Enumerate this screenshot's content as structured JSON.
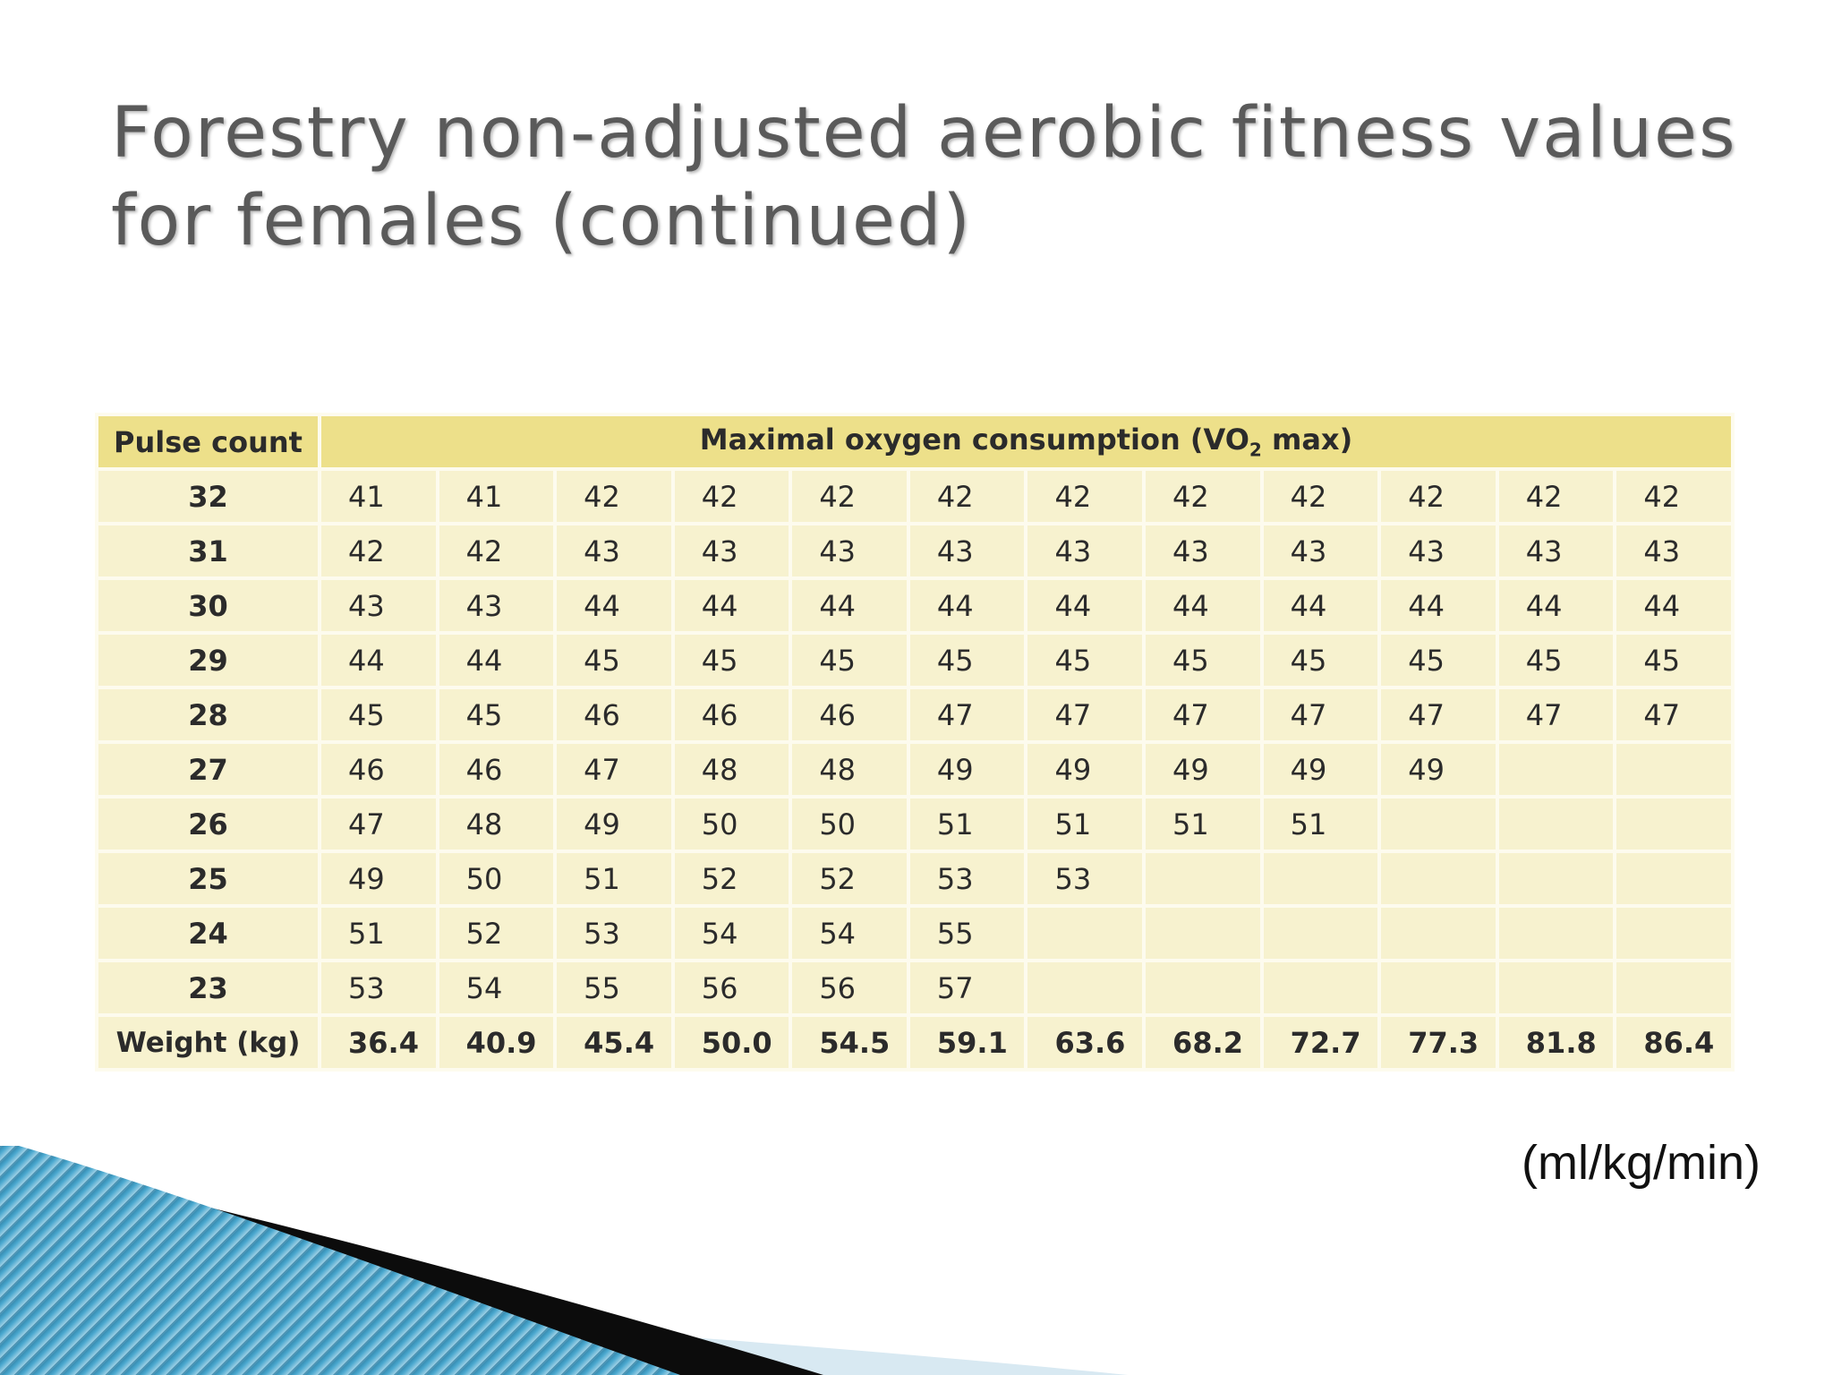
{
  "slide": {
    "title_line1": "Forestry non-adjusted aerobic fitness values",
    "title_line2": "for females (continued)",
    "unit": "(ml/kg/min)"
  },
  "table": {
    "header_row_label": "Pulse count",
    "header_group_prefix": "Maximal oxygen consumption (VO",
    "header_group_sub": "2",
    "header_group_suffix": " max)",
    "rows": [
      {
        "pulse": "32",
        "values": [
          "41",
          "41",
          "42",
          "42",
          "42",
          "42",
          "42",
          "42",
          "42",
          "42",
          "42",
          "42"
        ]
      },
      {
        "pulse": "31",
        "values": [
          "42",
          "42",
          "43",
          "43",
          "43",
          "43",
          "43",
          "43",
          "43",
          "43",
          "43",
          "43"
        ]
      },
      {
        "pulse": "30",
        "values": [
          "43",
          "43",
          "44",
          "44",
          "44",
          "44",
          "44",
          "44",
          "44",
          "44",
          "44",
          "44"
        ]
      },
      {
        "pulse": "29",
        "values": [
          "44",
          "44",
          "45",
          "45",
          "45",
          "45",
          "45",
          "45",
          "45",
          "45",
          "45",
          "45"
        ]
      },
      {
        "pulse": "28",
        "values": [
          "45",
          "45",
          "46",
          "46",
          "46",
          "47",
          "47",
          "47",
          "47",
          "47",
          "47",
          "47"
        ]
      },
      {
        "pulse": "27",
        "values": [
          "46",
          "46",
          "47",
          "48",
          "48",
          "49",
          "49",
          "49",
          "49",
          "49",
          "",
          ""
        ]
      },
      {
        "pulse": "26",
        "values": [
          "47",
          "48",
          "49",
          "50",
          "50",
          "51",
          "51",
          "51",
          "51",
          "",
          "",
          ""
        ]
      },
      {
        "pulse": "25",
        "values": [
          "49",
          "50",
          "51",
          "52",
          "52",
          "53",
          "53",
          "",
          "",
          "",
          "",
          ""
        ]
      },
      {
        "pulse": "24",
        "values": [
          "51",
          "52",
          "53",
          "54",
          "54",
          "55",
          "",
          "",
          "",
          "",
          "",
          ""
        ]
      },
      {
        "pulse": "23",
        "values": [
          "53",
          "54",
          "55",
          "56",
          "56",
          "57",
          "",
          "",
          "",
          "",
          "",
          ""
        ]
      }
    ],
    "weight_label": "Weight (kg)",
    "weights": [
      "36.4",
      "40.9",
      "45.4",
      "50.0",
      "54.5",
      "59.1",
      "63.6",
      "68.2",
      "72.7",
      "77.3",
      "81.8",
      "86.4"
    ]
  }
}
